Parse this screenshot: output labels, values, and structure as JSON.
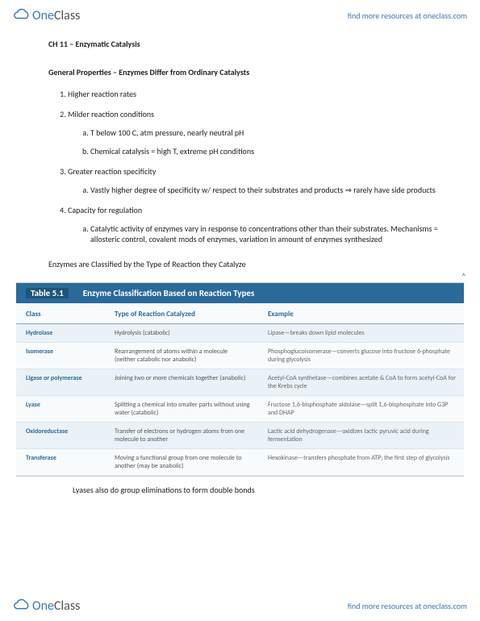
{
  "brand": {
    "name_one": "One",
    "name_class": "Class",
    "resources_text": "find more resources at oneclass.com"
  },
  "doc": {
    "ch_title": "CH 11 – Enzymatic Catalysis",
    "section_heading": "General Properties – Enzymes Differ from Ordinary Catalysts",
    "list": {
      "item1": "Higher reaction rates",
      "item2": "Milder reaction conditions",
      "item2a": "T below 100 C, atm pressure, nearly neutral pH",
      "item2b": "Chemical catalysis = high T, extreme pH conditions",
      "item3": "Greater reaction specificity",
      "item3a": "Vastly higher degree of specificity w/ respect to their substrates and products ⇒ rarely have side products",
      "item4": "Capacity for regulation",
      "item4a": "Catalytic activity of enzymes vary in response to concentrations other than their substrates. Mechanisms = allosteric control, covalent mods of enzymes, variation in amount of enzymes synthesized"
    },
    "classify_heading": "Enzymes are Classified by the Type of Reaction they Catalyze",
    "note_bottom": "Lyases also do group eliminations to form double bonds"
  },
  "table": {
    "label": "Table 5.1",
    "title": "Enzyme Classification Based on Reaction Types",
    "caret": "^",
    "headers": {
      "c1": "Class",
      "c2": "Type of Reaction Catalyzed",
      "c3": "Example"
    },
    "rows": [
      {
        "c1": "Hydrolase",
        "c2": "Hydrolysis (catabolic)",
        "c3": "Lipase—breaks down lipid molecules"
      },
      {
        "c1": "Isomerase",
        "c2": "Rearrangement of atoms within a molecule (neither catabolic nor anabolic)",
        "c3": "Phosphoglucoisomerase—converts glucose into fructose 6-phosphate during glycolysis"
      },
      {
        "c1": "Ligase or polymerase",
        "c2": "Joining two or more chemicals together (anabolic)",
        "c3": "Acetyl-CoA synthetase—combines acetate & CoA to form acetyl-CoA for the Krebs cycle"
      },
      {
        "c1": "Lyase",
        "c2": "Splitting a chemical into smaller parts without using water (catabolic)",
        "c3": "Fructose 1,6-bisphosphate aldolase—split 1,6-bisphosphate into G3P and DHAP"
      },
      {
        "c1": "Oxidoreductase",
        "c2": "Transfer of electrons or hydrogen atoms from one molecule to another",
        "c3": "Lactic acid dehydrogenase—oxidizes lactic pyruvic acid during fermentation"
      },
      {
        "c1": "Transferase",
        "c2": "Moving a functional group from one molecule to another (may be anabolic)",
        "c3": "Hexokinase—transfers phosphate from ATP; the first step of glycolysis"
      }
    ]
  },
  "colors": {
    "brand_blue": "#3a7ab8",
    "table_header_bg": "#2a6a9a",
    "table_alt_bg": "#eaf2f8"
  }
}
